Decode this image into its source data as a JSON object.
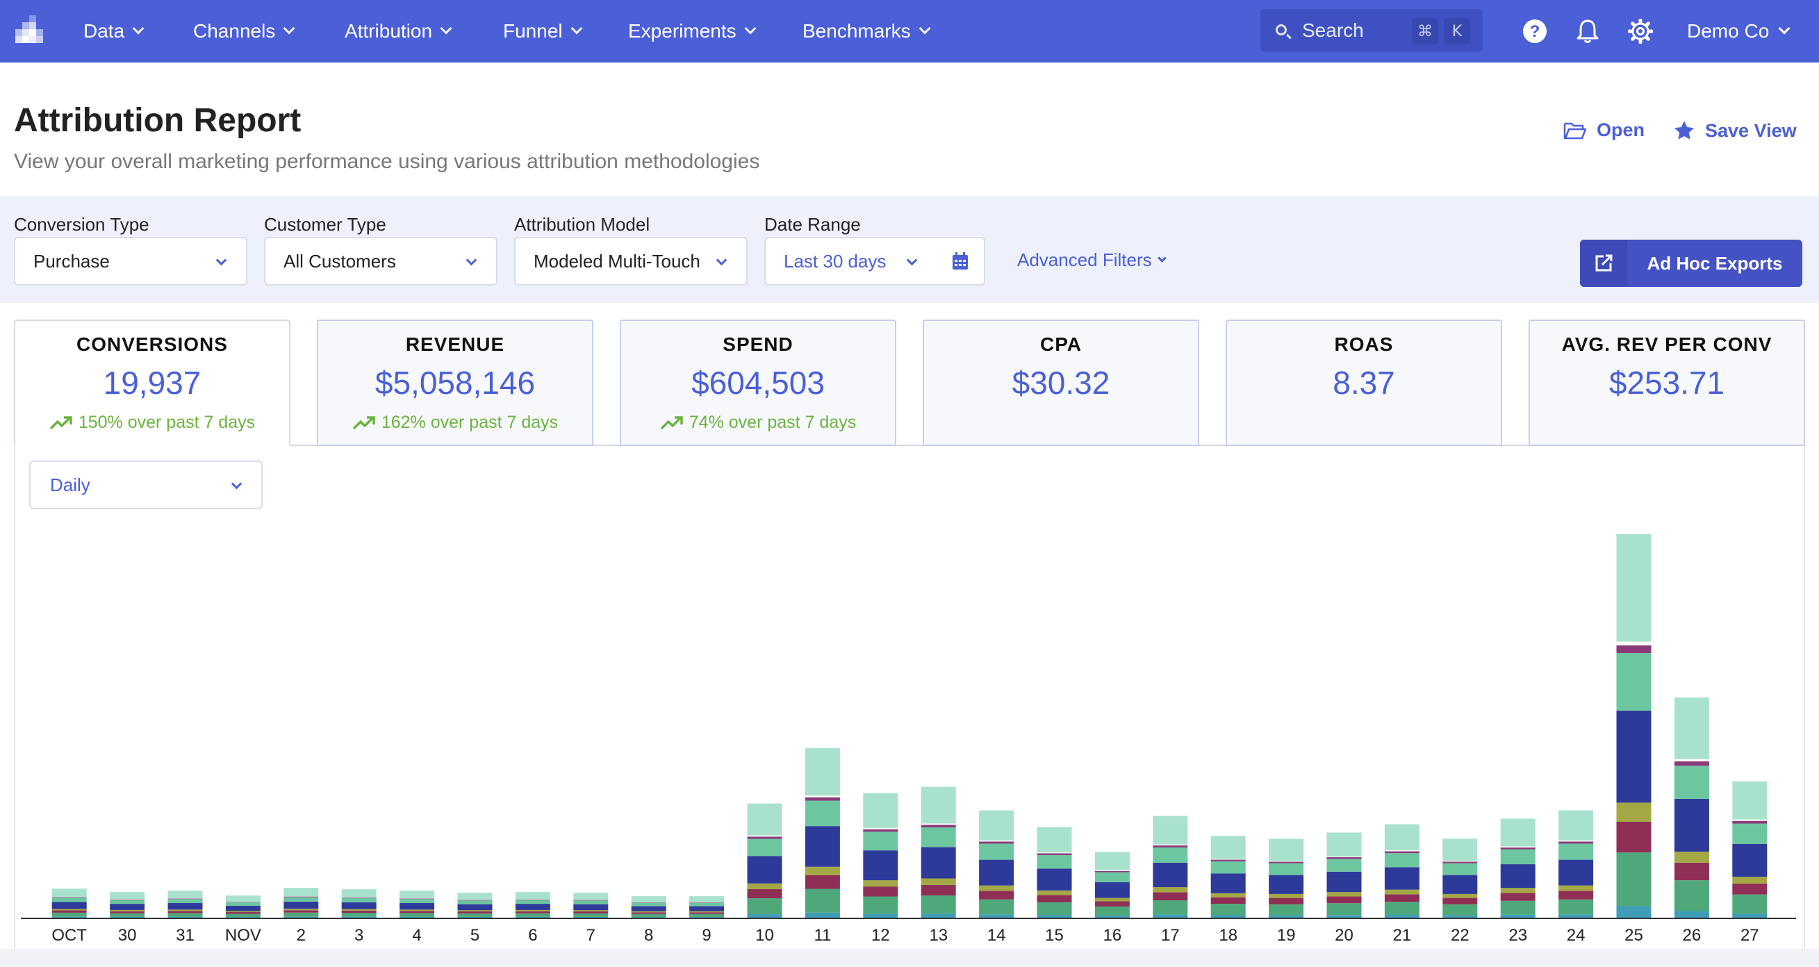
{
  "nav": {
    "items": [
      {
        "label": "Data"
      },
      {
        "label": "Channels"
      },
      {
        "label": "Attribution"
      },
      {
        "label": "Funnel"
      },
      {
        "label": "Experiments"
      },
      {
        "label": "Benchmarks"
      }
    ],
    "search_label": "Search",
    "search_key1": "⌘",
    "search_key2": "K",
    "user_label": "Demo Co",
    "help_icon": "help-icon",
    "bell_icon": "bell-icon",
    "gear_icon": "gear-icon",
    "brand_color": "#4b5fd6"
  },
  "header": {
    "title": "Attribution Report",
    "subtitle": "View your overall marketing performance using various attribution methodologies",
    "open_label": "Open",
    "save_label": "Save View"
  },
  "filters": {
    "conversion_type": {
      "label": "Conversion Type",
      "value": "Purchase"
    },
    "customer_type": {
      "label": "Customer Type",
      "value": "All Customers"
    },
    "attribution_model": {
      "label": "Attribution Model",
      "value": "Modeled Multi-Touch"
    },
    "date_range": {
      "label": "Date Range",
      "value": "Last 30 days"
    },
    "advanced_label": "Advanced Filters",
    "adhoc_label": "Ad Hoc Exports"
  },
  "metrics": [
    {
      "label": "CONVERSIONS",
      "value": "19,937",
      "change": "150% over past 7 days"
    },
    {
      "label": "REVENUE",
      "value": "$5,058,146",
      "change": "162% over past 7 days"
    },
    {
      "label": "SPEND",
      "value": "$604,503",
      "change": "74% over past 7 days"
    },
    {
      "label": "CPA",
      "value": "$30.32",
      "change": ""
    },
    {
      "label": "ROAS",
      "value": "8.37",
      "change": ""
    },
    {
      "label": "AVG. REV PER CONV",
      "value": "$253.71",
      "change": ""
    }
  ],
  "chart_controls": {
    "granularity": "Daily"
  },
  "chart_data": {
    "type": "bar",
    "stacked": true,
    "categories": [
      "OCT",
      "30",
      "31",
      "NOV",
      "2",
      "3",
      "4",
      "5",
      "6",
      "7",
      "8",
      "9",
      "10",
      "11",
      "12",
      "13",
      "14",
      "15",
      "16",
      "17",
      "18",
      "19",
      "20",
      "21",
      "22",
      "23",
      "24",
      "25",
      "26",
      "27"
    ],
    "totals": [
      42,
      37,
      39,
      32,
      43,
      41,
      39,
      36,
      37,
      36,
      31,
      31,
      165,
      245,
      180,
      189,
      155,
      131,
      95,
      147,
      118,
      114,
      123,
      135,
      114,
      143,
      155,
      554,
      318,
      197
    ],
    "colors": [
      "#3f9db8",
      "#4fa87a",
      "#8f2f56",
      "#a3a844",
      "#2d3a9a",
      "#6cc7a1",
      "#8a3a78",
      "#ffffff",
      "#a9e2cc"
    ],
    "segment_fractions": [
      0.03,
      0.14,
      0.08,
      0.05,
      0.24,
      0.15,
      0.02,
      0.01,
      0.28
    ],
    "ylim": [
      0,
      560
    ],
    "grid": false,
    "legend": "none"
  }
}
